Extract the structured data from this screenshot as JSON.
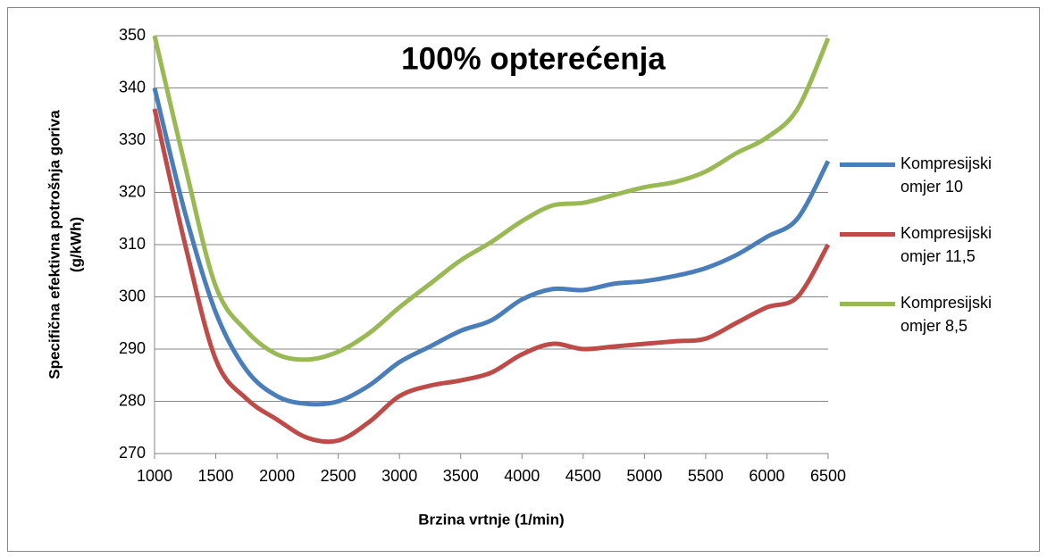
{
  "chart_data": {
    "type": "line",
    "title": "100% opterećenja",
    "xlabel": "Brzina vrtnje (1/min)",
    "ylabel": [
      "Specifična efektivna potrošnja goriva",
      "(g/kWh)"
    ],
    "x": [
      1000,
      1250,
      1500,
      1750,
      2000,
      2250,
      2500,
      2750,
      3000,
      3250,
      3500,
      3750,
      4000,
      4250,
      4500,
      4750,
      5000,
      5250,
      5500,
      5750,
      6000,
      6250,
      6500
    ],
    "series": [
      {
        "name": "Kompresijski omjer 10",
        "color": "#4a7ebb",
        "values": [
          340,
          316,
          297,
          286,
          281,
          279.5,
          280,
          283,
          287.5,
          290.5,
          293.5,
          295.5,
          299.5,
          301.5,
          301.3,
          302.5,
          303,
          304,
          305.5,
          308,
          311.5,
          315,
          326
        ]
      },
      {
        "name": "Kompresijski omjer 11,5",
        "color": "#be4b48",
        "values": [
          336,
          310,
          288,
          280.5,
          276.5,
          273,
          272.5,
          276,
          281,
          283,
          284,
          285.5,
          289,
          291,
          290,
          290.5,
          291,
          291.5,
          292,
          295,
          298,
          300,
          310
        ]
      },
      {
        "name": "Kompresijski omjer 8,5",
        "color": "#98b954",
        "values": [
          350,
          325,
          302,
          293.5,
          289,
          288,
          289.5,
          293,
          298,
          302.5,
          307,
          310.5,
          314.5,
          317.5,
          318,
          319.5,
          321,
          322,
          324,
          327.5,
          330.5,
          336,
          349.5
        ]
      }
    ],
    "xlim": [
      1000,
      6500
    ],
    "xticks": [
      1000,
      1500,
      2000,
      2500,
      3000,
      3500,
      4000,
      4500,
      5000,
      5500,
      6000,
      6500
    ],
    "ylim": [
      270,
      350
    ],
    "yticks": [
      270,
      280,
      290,
      300,
      310,
      320,
      330,
      340,
      350
    ],
    "grid": true
  }
}
